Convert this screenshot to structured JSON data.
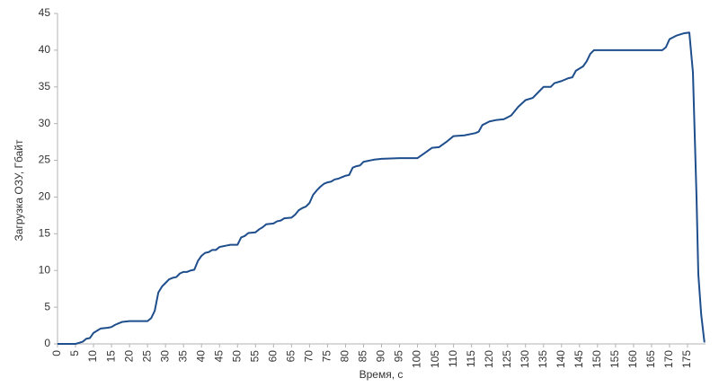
{
  "chart_data": {
    "type": "line",
    "x_label": "Время, с",
    "y_label": "Загрузка ОЗУ, Гбайт",
    "x": [
      0,
      5,
      7,
      8,
      9,
      10,
      12,
      14,
      15,
      16,
      17,
      18,
      20,
      25,
      26,
      27,
      28,
      29,
      30,
      31,
      32,
      33,
      34,
      35,
      36,
      37,
      38,
      39,
      40,
      41,
      42,
      43,
      44,
      45,
      46,
      47,
      48,
      50,
      51,
      52,
      53,
      55,
      56,
      57,
      58,
      60,
      61,
      62,
      63,
      65,
      66,
      67,
      68,
      69,
      70,
      71,
      72,
      73,
      74,
      75,
      76,
      77,
      78,
      79,
      80,
      81,
      82,
      83,
      84,
      85,
      86,
      87,
      88,
      90,
      95,
      100,
      102,
      104,
      106,
      108,
      110,
      113,
      116,
      117,
      118,
      120,
      122,
      124,
      126,
      128,
      130,
      132,
      134,
      135,
      137,
      138,
      140,
      142,
      143,
      144,
      146,
      147,
      148,
      149,
      168,
      169,
      170,
      172,
      174,
      175.5,
      176.5,
      177.5,
      178,
      178.8,
      179.7
    ],
    "values": [
      0,
      0,
      0.3,
      0.7,
      0.8,
      1.5,
      2.1,
      2.2,
      2.3,
      2.6,
      2.8,
      3.0,
      3.1,
      3.1,
      3.5,
      4.5,
      7,
      7.8,
      8.3,
      8.8,
      9.0,
      9.1,
      9.6,
      9.8,
      9.8,
      10.0,
      10.1,
      11.3,
      12.0,
      12.4,
      12.5,
      12.8,
      12.8,
      13.2,
      13.3,
      13.4,
      13.5,
      13.5,
      14.5,
      14.7,
      15.1,
      15.2,
      15.6,
      15.9,
      16.3,
      16.4,
      16.7,
      16.8,
      17.1,
      17.2,
      17.6,
      18.2,
      18.5,
      18.7,
      19.2,
      20.3,
      20.9,
      21.4,
      21.8,
      22.0,
      22.1,
      22.4,
      22.5,
      22.7,
      22.9,
      23.0,
      24.0,
      24.2,
      24.3,
      24.8,
      24.9,
      25.0,
      25.1,
      25.2,
      25.3,
      25.3,
      26.0,
      26.7,
      26.8,
      27.5,
      28.3,
      28.4,
      28.7,
      28.9,
      29.8,
      30.3,
      30.5,
      30.6,
      31.1,
      32.3,
      33.2,
      33.5,
      34.5,
      35.0,
      35.0,
      35.5,
      35.8,
      36.2,
      36.3,
      37.2,
      37.8,
      38.5,
      39.5,
      40.0,
      40.0,
      40.4,
      41.5,
      42.0,
      42.3,
      42.4,
      37,
      20,
      9.5,
      4,
      0.2
    ],
    "color": "#1f4e8c",
    "xlim": [
      0,
      180
    ],
    "xticks": [
      0,
      5,
      10,
      15,
      20,
      25,
      30,
      35,
      40,
      45,
      50,
      55,
      60,
      65,
      70,
      75,
      80,
      85,
      90,
      95,
      100,
      105,
      110,
      115,
      120,
      125,
      130,
      135,
      140,
      145,
      150,
      155,
      160,
      165,
      170,
      175
    ],
    "ylim": [
      0,
      45
    ],
    "yticks": [
      0,
      5,
      10,
      15,
      20,
      25,
      30,
      35,
      40,
      45
    ]
  }
}
